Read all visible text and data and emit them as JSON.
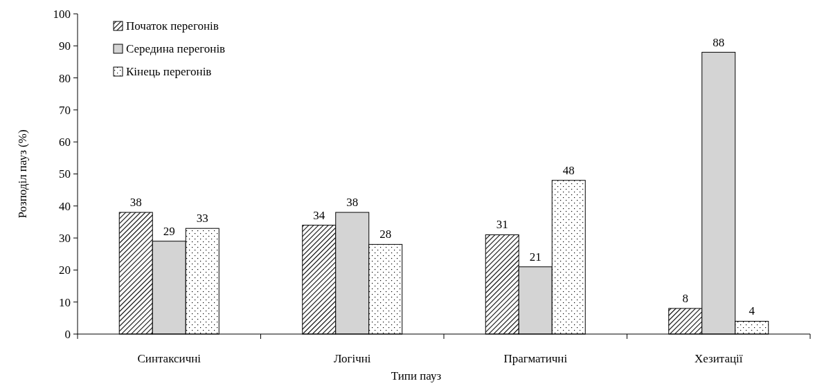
{
  "chart_data": {
    "type": "bar",
    "xlabel": "Типи пауз",
    "ylabel": "Розподіл пауз  (%)",
    "categories": [
      "Синтаксичні",
      "Логічні",
      "Прагматичні",
      "Хезитації"
    ],
    "series": [
      {
        "name": "Початок перегонів",
        "color": "#000000",
        "values": [
          38,
          34,
          31,
          8
        ]
      },
      {
        "name": "Середина перегонів",
        "color": "#d4d4d4",
        "values": [
          29,
          38,
          21,
          88
        ]
      },
      {
        "name": "Кінець перегонів",
        "color": "#000000",
        "values": [
          33,
          28,
          48,
          4
        ]
      }
    ],
    "ylim": [
      0,
      100
    ],
    "yticks": [
      0,
      10,
      20,
      30,
      40,
      50,
      60,
      70,
      80,
      90,
      100
    ],
    "grid": false,
    "legend": "top left",
    "data_labels": true
  }
}
